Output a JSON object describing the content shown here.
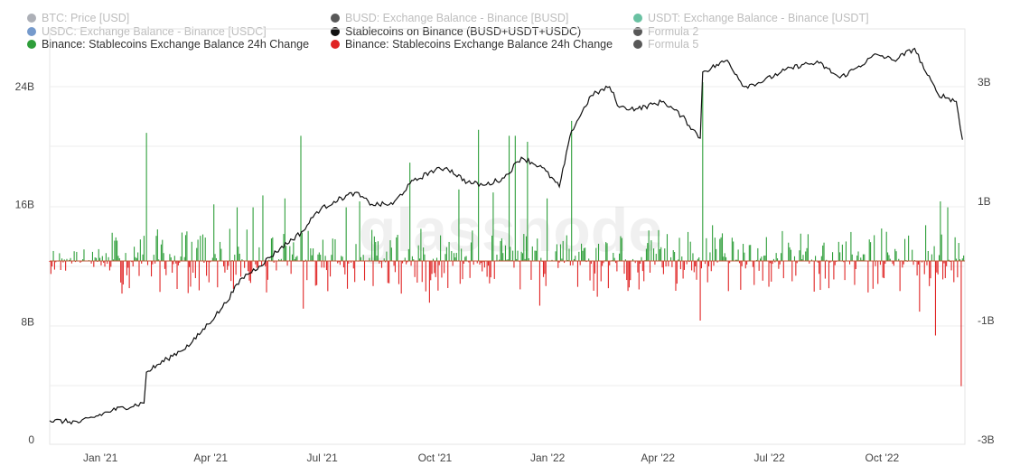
{
  "legend": [
    {
      "label": "BTC: Price [USD]",
      "color": "#8a8f98",
      "muted": true
    },
    {
      "label": "BUSD: Exchange Balance - Binance [BUSD]",
      "color": "#111111",
      "muted": true
    },
    {
      "label": "USDT: Exchange Balance - Binance [USDT]",
      "color": "#2aa77a",
      "muted": true
    },
    {
      "label": "USDC: Exchange Balance - Binance [USDC]",
      "color": "#3b6fb6",
      "muted": true
    },
    {
      "label": "Stablecoins on Binance (BUSD+USDT+USDC)",
      "color": "#111111",
      "muted": false
    },
    {
      "label": "Formula 2",
      "color": "#111111",
      "muted": true
    },
    {
      "label": "Binance: Stablecoins Exchange Balance 24h Change",
      "color": "#2e9e3a",
      "muted": false
    },
    {
      "label": "Binance: Stablecoins Exchange Balance 24h Change",
      "color": "#e02424",
      "muted": false
    },
    {
      "label": "Formula 5",
      "color": "#111111",
      "muted": true
    }
  ],
  "watermark": "glassnode",
  "chart_data": {
    "type": "line",
    "x_ticks": [
      "Jan '21",
      "Apr '21",
      "Jul '21",
      "Oct '21",
      "Jan '22",
      "Apr '22",
      "Jul '22",
      "Oct '22"
    ],
    "y_left_ticks": [
      "0",
      "8B",
      "16B",
      "24B"
    ],
    "y_left_values": [
      0,
      8,
      16,
      24
    ],
    "y_left_range": [
      0,
      24
    ],
    "y_right_ticks": [
      "-3B",
      "-1B",
      "1B",
      "3B"
    ],
    "y_right_values": [
      -3,
      -1,
      1,
      3
    ],
    "y_right_range": [
      -3,
      3
    ],
    "grid": true,
    "series_balance": {
      "name": "Stablecoins on Binance (BUSD+USDT+USDC)",
      "color": "#111111",
      "axis": "left",
      "unit": "B",
      "points": [
        [
          "2020-11-25",
          1.3
        ],
        [
          "2020-12-20",
          1.2
        ],
        [
          "2021-01-15",
          2.0
        ],
        [
          "2021-02-10",
          2.5
        ],
        [
          "2021-02-12",
          4.6
        ],
        [
          "2021-03-01",
          5.5
        ],
        [
          "2021-03-20",
          6.5
        ],
        [
          "2021-04-15",
          9.0
        ],
        [
          "2021-05-01",
          11.0
        ],
        [
          "2021-05-15",
          11.8
        ],
        [
          "2021-06-01",
          13.0
        ],
        [
          "2021-06-20",
          14.2
        ],
        [
          "2021-07-01",
          15.5
        ],
        [
          "2021-07-15",
          16.2
        ],
        [
          "2021-08-01",
          16.8
        ],
        [
          "2021-08-15",
          16.0
        ],
        [
          "2021-09-01",
          16.0
        ],
        [
          "2021-09-15",
          17.4
        ],
        [
          "2021-10-01",
          18.2
        ],
        [
          "2021-10-15",
          18.5
        ],
        [
          "2021-11-01",
          17.5
        ],
        [
          "2021-11-15",
          17.3
        ],
        [
          "2021-12-01",
          17.8
        ],
        [
          "2021-12-15",
          19.2
        ],
        [
          "2022-01-01",
          18.5
        ],
        [
          "2022-01-15",
          17.2
        ],
        [
          "2022-01-25",
          21.0
        ],
        [
          "2022-02-10",
          23.4
        ],
        [
          "2022-02-25",
          24.0
        ],
        [
          "2022-03-05",
          22.6
        ],
        [
          "2022-03-20",
          22.5
        ],
        [
          "2022-04-10",
          23.0
        ],
        [
          "2022-04-25",
          22.0
        ],
        [
          "2022-05-10",
          20.5
        ],
        [
          "2022-05-12",
          25.0
        ],
        [
          "2022-06-01",
          25.8
        ],
        [
          "2022-06-15",
          24.0
        ],
        [
          "2022-07-01",
          24.4
        ],
        [
          "2022-07-15",
          25.0
        ],
        [
          "2022-08-01",
          25.5
        ],
        [
          "2022-08-15",
          25.6
        ],
        [
          "2022-09-01",
          24.6
        ],
        [
          "2022-09-15",
          25.3
        ],
        [
          "2022-10-01",
          26.2
        ],
        [
          "2022-10-15",
          25.8
        ],
        [
          "2022-11-01",
          26.6
        ],
        [
          "2022-11-10",
          25.0
        ],
        [
          "2022-11-20",
          23.5
        ],
        [
          "2022-12-05",
          23.0
        ],
        [
          "2022-12-10",
          20.4
        ]
      ]
    },
    "series_change": {
      "name": "Binance: Stablecoins Exchange Balance 24h Change",
      "axis": "right",
      "unit": "B",
      "positive_color": "#2e9e3a",
      "negative_color": "#e02424",
      "spikes": [
        [
          "2021-02-12",
          2.15
        ],
        [
          "2021-04-08",
          0.95
        ],
        [
          "2021-04-27",
          0.9
        ],
        [
          "2021-05-10",
          0.9
        ],
        [
          "2021-05-18",
          1.1
        ],
        [
          "2021-06-05",
          1.05
        ],
        [
          "2021-06-18",
          2.1
        ],
        [
          "2021-07-25",
          0.9
        ],
        [
          "2021-08-05",
          1.0
        ],
        [
          "2021-09-15",
          1.65
        ],
        [
          "2021-10-25",
          1.2
        ],
        [
          "2021-11-10",
          2.2
        ],
        [
          "2021-11-22",
          1.15
        ],
        [
          "2021-12-05",
          2.1
        ],
        [
          "2021-12-10",
          2.1
        ],
        [
          "2021-12-20",
          2.0
        ],
        [
          "2022-01-05",
          1.05
        ],
        [
          "2022-01-25",
          2.35
        ],
        [
          "2022-05-12",
          3.0
        ],
        [
          "2022-05-20",
          0.6
        ],
        [
          "2022-11-10",
          0.6
        ],
        [
          "2022-11-22",
          1.0
        ],
        [
          "2022-11-28",
          0.9
        ],
        [
          "2022-04-20",
          -0.5
        ],
        [
          "2021-06-20",
          -0.8
        ],
        [
          "2021-10-01",
          -0.7
        ],
        [
          "2021-12-30",
          -0.75
        ],
        [
          "2022-02-15",
          -0.6
        ],
        [
          "2022-05-10",
          -1.0
        ],
        [
          "2022-11-05",
          -0.85
        ],
        [
          "2022-11-18",
          -1.25
        ],
        [
          "2022-12-09",
          -2.1
        ]
      ]
    }
  }
}
